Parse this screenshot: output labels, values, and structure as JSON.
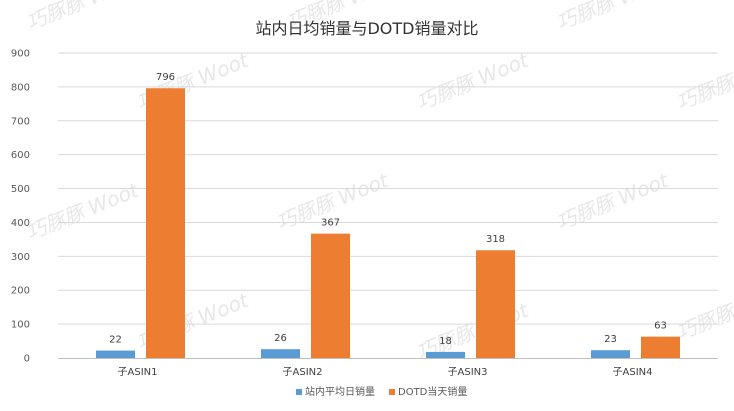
{
  "chart_data": {
    "type": "bar",
    "title": "站内日均销量与DOTD销量对比",
    "categories": [
      "子ASIN1",
      "子ASIN2",
      "子ASIN3",
      "子ASIN4"
    ],
    "series": [
      {
        "name": "站内平均日销量",
        "values": [
          22,
          26,
          18,
          23
        ],
        "color": "#5b9bd5"
      },
      {
        "name": "DOTD当天销量",
        "values": [
          796,
          367,
          318,
          63
        ],
        "color": "#ed7d31"
      }
    ],
    "y_ticks": [
      "0",
      "100",
      "200",
      "300",
      "400",
      "500",
      "600",
      "700",
      "800",
      "900"
    ],
    "ylim": [
      0,
      900
    ],
    "xlabel": "",
    "ylabel": "",
    "grid": true,
    "legend_position": "bottom",
    "gridline_color": "#d9d9d9"
  },
  "watermark": {
    "text": "巧豚豚 Woot",
    "color": "#d4d4d4"
  }
}
